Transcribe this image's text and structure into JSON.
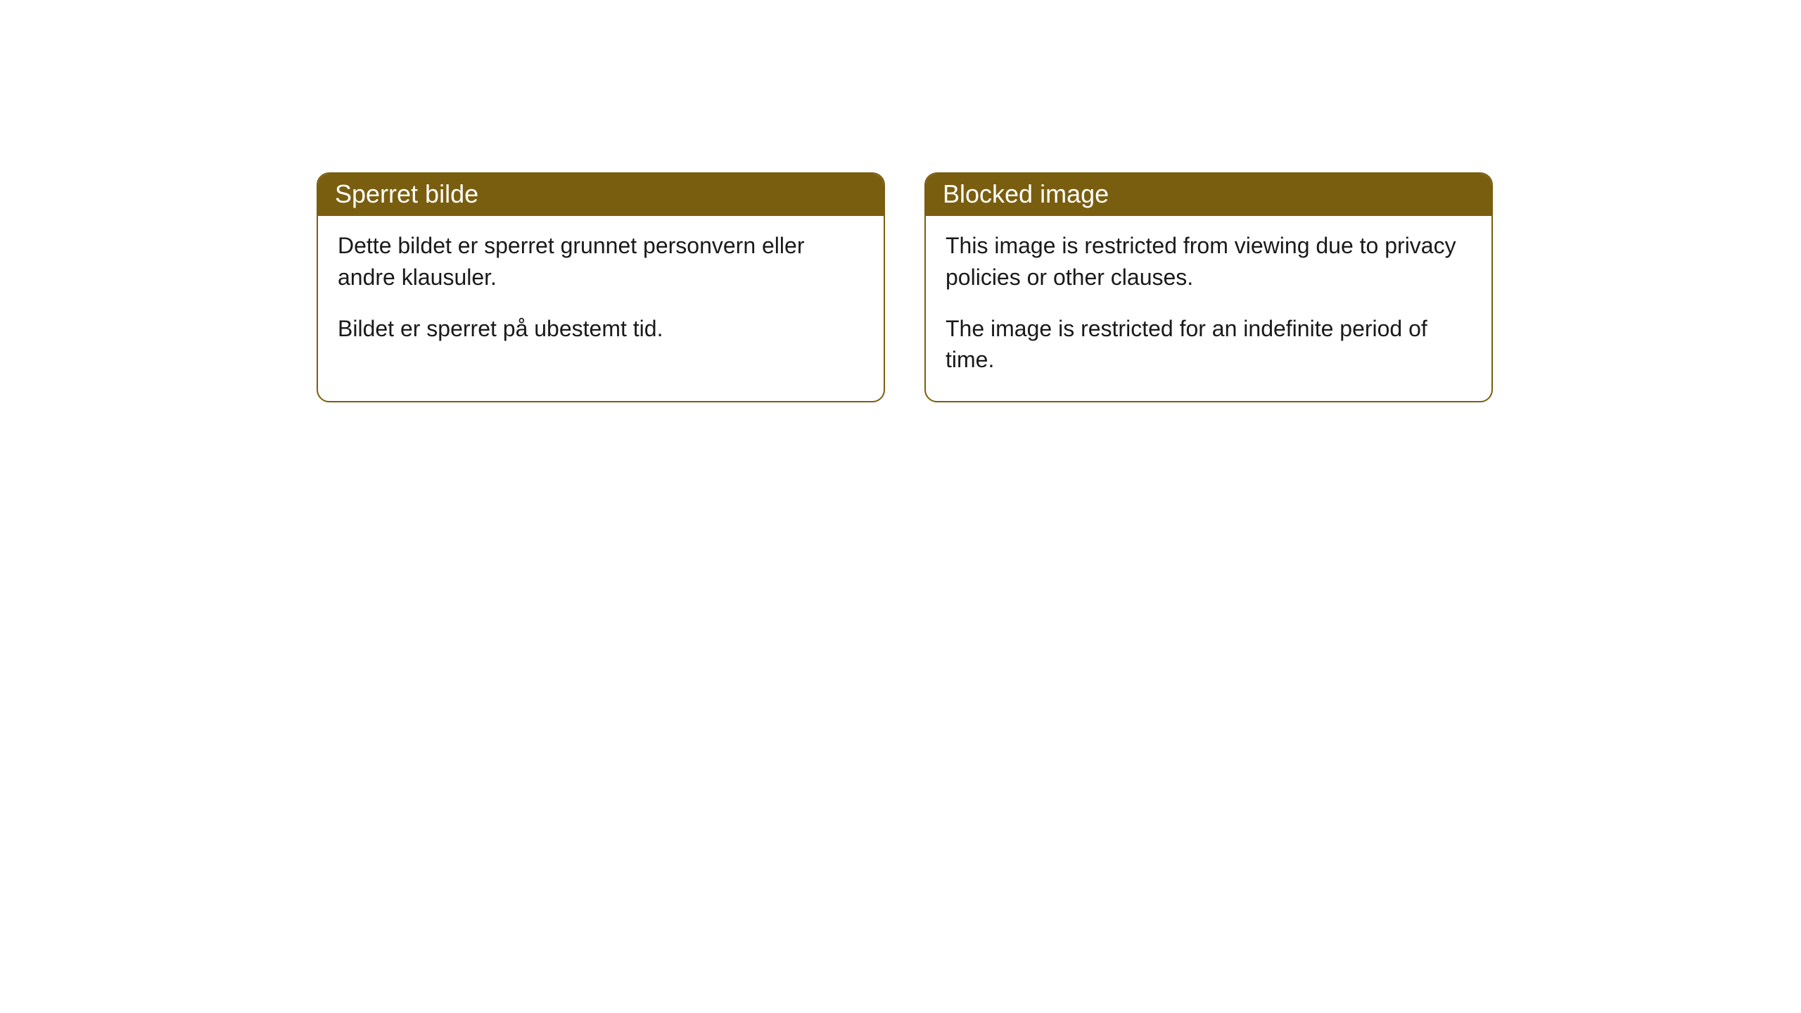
{
  "notices": [
    {
      "title": "Sperret bilde",
      "paragraph1": "Dette bildet er sperret grunnet personvern eller andre klausuler.",
      "paragraph2": "Bildet er sperret på ubestemt tid."
    },
    {
      "title": "Blocked image",
      "paragraph1": "This image is restricted from viewing due to privacy policies or other clauses.",
      "paragraph2": "The image is restricted for an indefinite period of time."
    }
  ],
  "colors": {
    "header_bg": "#7a5e0f",
    "header_text": "#ffffff",
    "body_text": "#1a1a1a",
    "border": "#7a5e0f",
    "page_bg": "#ffffff"
  }
}
